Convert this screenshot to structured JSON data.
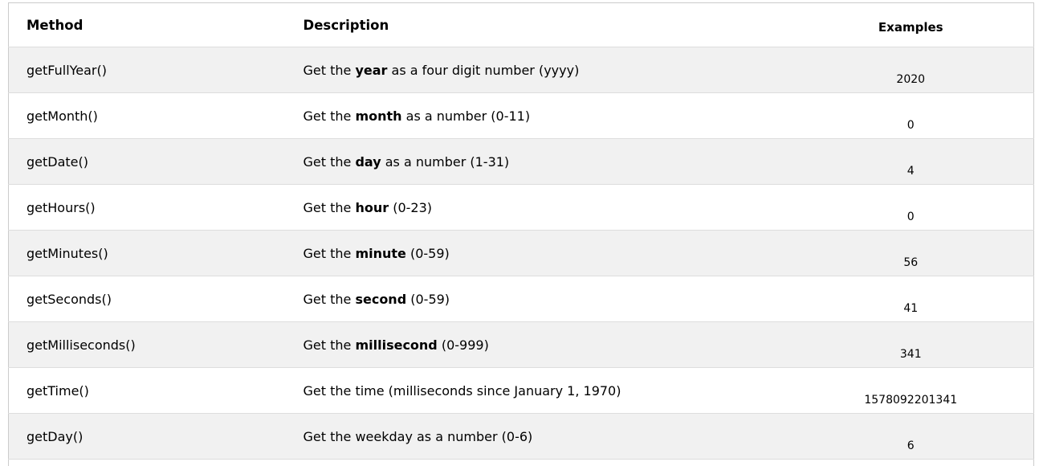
{
  "headers": {
    "method": "Method",
    "description": "Description",
    "examples": "Examples"
  },
  "rows": [
    {
      "method": "getFullYear()",
      "pre": "Get the ",
      "bold": "year",
      "post": " as a four digit number (yyyy)",
      "example": "2020"
    },
    {
      "method": "getMonth()",
      "pre": "Get the ",
      "bold": "month",
      "post": " as a number (0-11)",
      "example": "0"
    },
    {
      "method": "getDate()",
      "pre": "Get the ",
      "bold": "day",
      "post": " as a number (1-31)",
      "example": "4"
    },
    {
      "method": "getHours()",
      "pre": "Get the ",
      "bold": "hour",
      "post": " (0-23)",
      "example": "0"
    },
    {
      "method": "getMinutes()",
      "pre": "Get the ",
      "bold": "minute",
      "post": " (0-59)",
      "example": "56"
    },
    {
      "method": "getSeconds()",
      "pre": "Get the ",
      "bold": "second",
      "post": " (0-59)",
      "example": "41"
    },
    {
      "method": "getMilliseconds()",
      "pre": "Get the ",
      "bold": "millisecond",
      "post": " (0-999)",
      "example": "341"
    },
    {
      "method": "getTime()",
      "pre": "Get the time (milliseconds since January 1, 1970)",
      "bold": "",
      "post": "",
      "example": "1578092201341"
    },
    {
      "method": "getDay()",
      "pre": "Get the weekday as a number (0-6)",
      "bold": "",
      "post": "",
      "example": "6"
    }
  ]
}
